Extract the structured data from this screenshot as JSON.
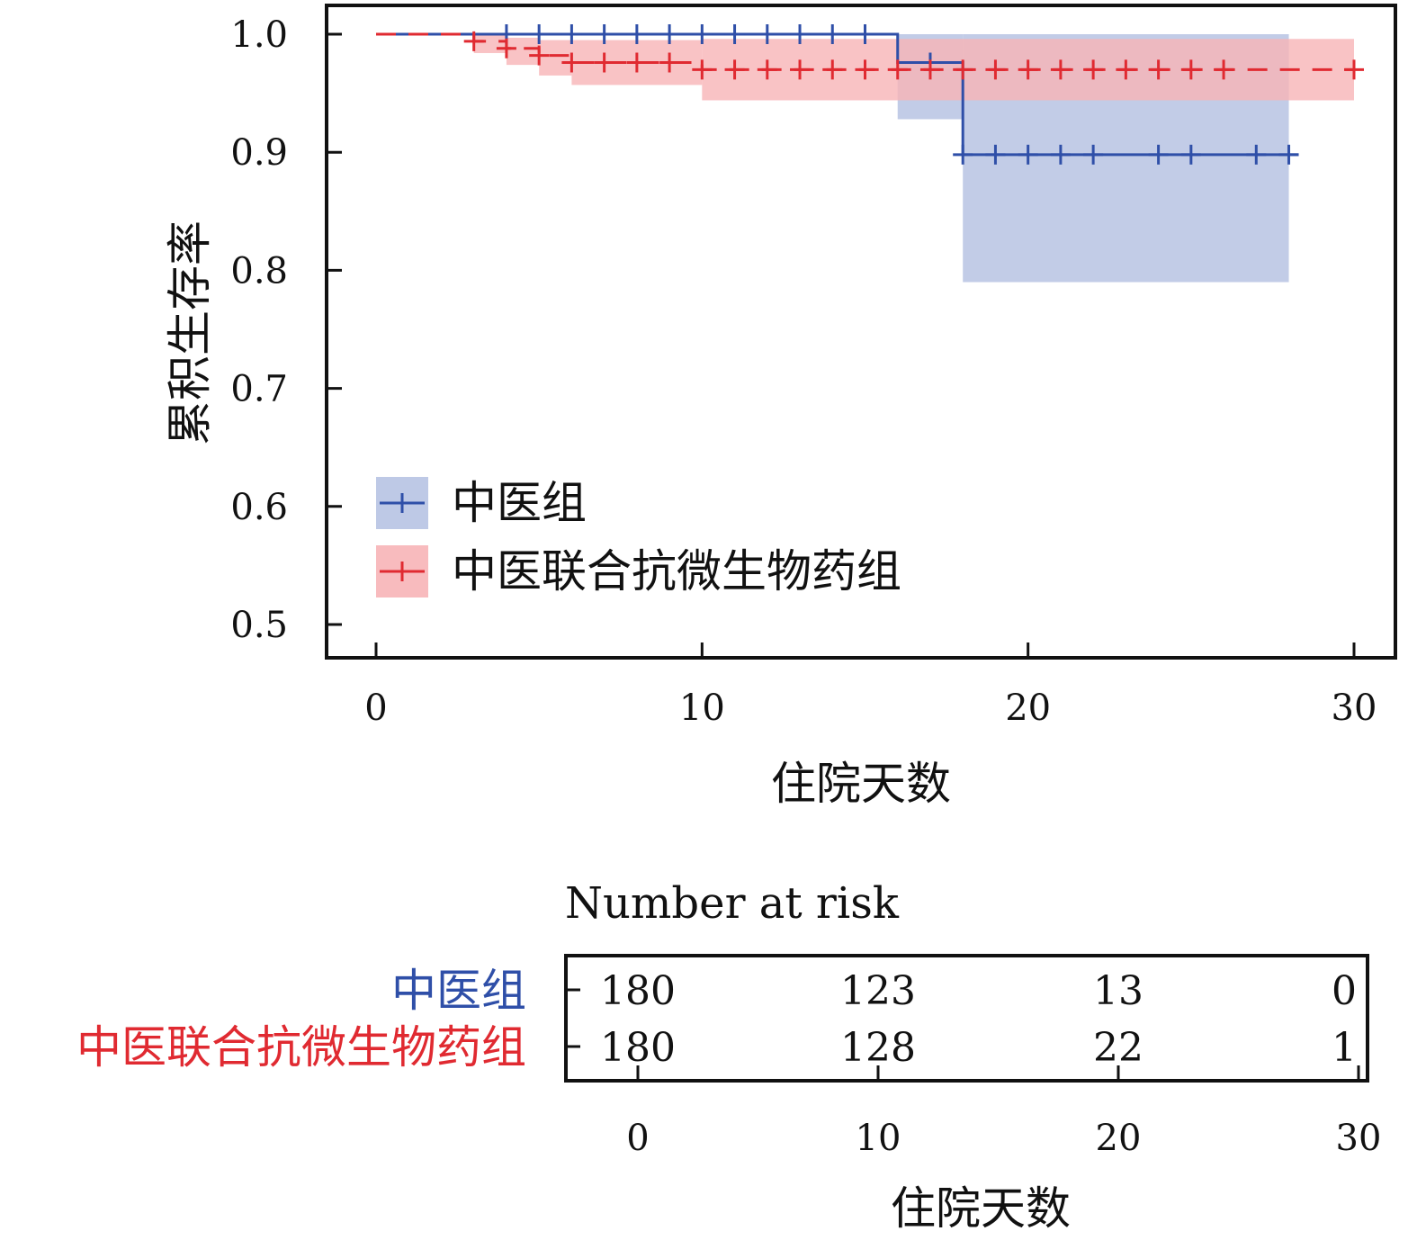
{
  "chart_data": {
    "type": "line",
    "subtype": "kaplan-meier",
    "title": "",
    "xlabel": "住院天数",
    "ylabel": "累积生存率",
    "xlim": [
      0,
      30
    ],
    "ylim": [
      0.5,
      1.0
    ],
    "xticks": [
      "0",
      "10",
      "20",
      "30"
    ],
    "yticks": [
      "0.5",
      "0.6",
      "0.7",
      "0.8",
      "0.9",
      "1.0"
    ],
    "grid": false,
    "legend_position": "bottom-left",
    "series": [
      {
        "name": "中医组",
        "color": "#2f4fa8",
        "band_color": "#b7c3e3",
        "line_style": "solid",
        "steps": [
          [
            0,
            1.0
          ],
          [
            16,
            0.976
          ],
          [
            18,
            0.898
          ],
          [
            28.3,
            0.898
          ]
        ],
        "ci_bands": [
          {
            "x0": 16,
            "x1": 18,
            "lo": 0.928,
            "hi": 1.0
          },
          {
            "x0": 18,
            "x1": 28,
            "lo": 0.79,
            "hi": 1.0
          }
        ],
        "censors": [
          [
            4,
            1.0
          ],
          [
            5,
            1.0
          ],
          [
            6,
            1.0
          ],
          [
            7,
            1.0
          ],
          [
            8,
            1.0
          ],
          [
            9,
            1.0
          ],
          [
            10,
            1.0
          ],
          [
            11,
            1.0
          ],
          [
            12,
            1.0
          ],
          [
            13,
            1.0
          ],
          [
            14,
            1.0
          ],
          [
            15,
            1.0
          ],
          [
            17,
            0.976
          ],
          [
            18,
            0.898
          ],
          [
            19,
            0.898
          ],
          [
            20,
            0.898
          ],
          [
            21,
            0.898
          ],
          [
            22,
            0.898
          ],
          [
            24,
            0.898
          ],
          [
            25,
            0.898
          ],
          [
            27,
            0.898
          ],
          [
            28,
            0.898
          ]
        ]
      },
      {
        "name": "中医联合抗微生物药组",
        "color": "#e02a31",
        "band_color": "#f7b4b7",
        "line_style": "dashed",
        "steps": [
          [
            0,
            1.0
          ],
          [
            3,
            0.994
          ],
          [
            4,
            0.988
          ],
          [
            5,
            0.982
          ],
          [
            6,
            0.976
          ],
          [
            10,
            0.97
          ],
          [
            30,
            0.97
          ]
        ],
        "ci_bands": [
          {
            "x0": 3,
            "x1": 4,
            "lo": 0.984,
            "hi": 1.0
          },
          {
            "x0": 4,
            "x1": 5,
            "lo": 0.974,
            "hi": 0.997
          },
          {
            "x0": 5,
            "x1": 6,
            "lo": 0.965,
            "hi": 0.995
          },
          {
            "x0": 6,
            "x1": 10,
            "lo": 0.957,
            "hi": 0.995
          },
          {
            "x0": 10,
            "x1": 30,
            "lo": 0.944,
            "hi": 0.996
          }
        ],
        "censors": [
          [
            3,
            0.994
          ],
          [
            4,
            0.988
          ],
          [
            5,
            0.982
          ],
          [
            6,
            0.976
          ],
          [
            7,
            0.976
          ],
          [
            8,
            0.976
          ],
          [
            9,
            0.976
          ],
          [
            10,
            0.97
          ],
          [
            11,
            0.97
          ],
          [
            12,
            0.97
          ],
          [
            13,
            0.97
          ],
          [
            14,
            0.97
          ],
          [
            15,
            0.97
          ],
          [
            16,
            0.97
          ],
          [
            17,
            0.97
          ],
          [
            18,
            0.97
          ],
          [
            19,
            0.97
          ],
          [
            20,
            0.97
          ],
          [
            21,
            0.97
          ],
          [
            22,
            0.97
          ],
          [
            23,
            0.97
          ],
          [
            24,
            0.97
          ],
          [
            25,
            0.97
          ],
          [
            26,
            0.97
          ],
          [
            30,
            0.97
          ]
        ]
      }
    ],
    "risk_table": {
      "title": "Number at risk",
      "xlabel": "住院天数",
      "times": [
        "0",
        "10",
        "20",
        "30"
      ],
      "rows": [
        {
          "name": "中医组",
          "color": "#2f4fa8",
          "values": [
            "180",
            "123",
            "13",
            "0"
          ]
        },
        {
          "name": "中医联合抗微生物药组",
          "color": "#e02a31",
          "values": [
            "180",
            "128",
            "22",
            "1"
          ]
        }
      ]
    }
  }
}
